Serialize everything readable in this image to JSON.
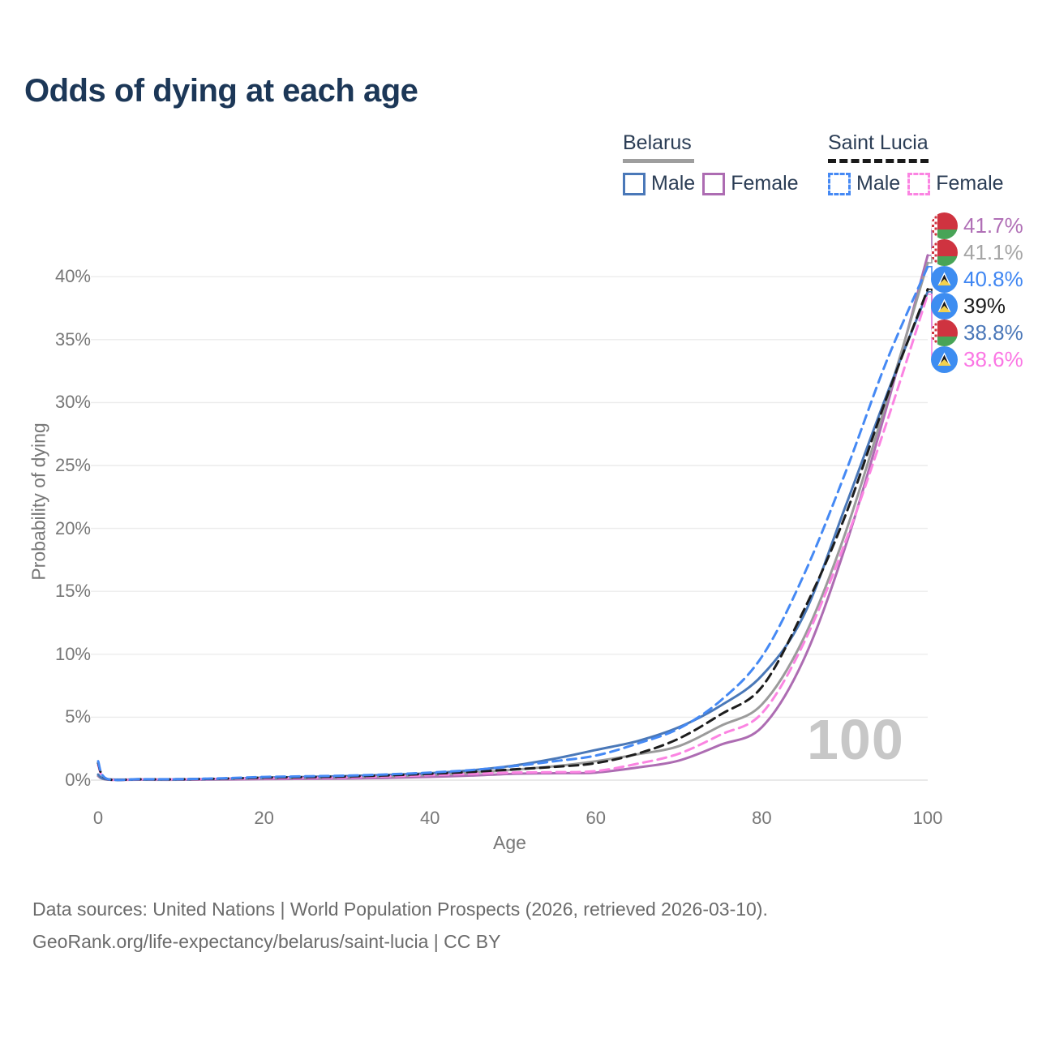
{
  "title": "Odds of dying at each age",
  "legend": {
    "groups": [
      {
        "label": "Belarus",
        "underline_style": "solid",
        "underline_color": "#9e9e9e",
        "items": [
          {
            "label": "Male",
            "color": "#4a78b8",
            "dashed": false
          },
          {
            "label": "Female",
            "color": "#ad6cb2",
            "dashed": false
          }
        ]
      },
      {
        "label": "Saint Lucia",
        "underline_style": "dashed",
        "underline_color": "#1a1a1a",
        "items": [
          {
            "label": "Male",
            "color": "#4589f4",
            "dashed": true
          },
          {
            "label": "Female",
            "color": "#fb84e2",
            "dashed": true
          }
        ]
      }
    ]
  },
  "chart_data": {
    "type": "line",
    "title": "Odds of dying at each age",
    "xlabel": "Age",
    "ylabel": "Probability of dying",
    "xlim": [
      0,
      100
    ],
    "ylim": [
      0,
      43
    ],
    "grid": true,
    "x_ticks": [
      0,
      20,
      40,
      60,
      80,
      100
    ],
    "y_ticks": [
      0,
      5,
      10,
      15,
      20,
      25,
      30,
      35,
      40
    ],
    "y_tick_labels": [
      "0%",
      "5%",
      "10%",
      "15%",
      "20%",
      "25%",
      "30%",
      "35%",
      "40%"
    ],
    "x": [
      0,
      1,
      5,
      10,
      15,
      20,
      25,
      30,
      35,
      40,
      45,
      50,
      55,
      60,
      65,
      70,
      75,
      80,
      85,
      90,
      95,
      100
    ],
    "series": [
      {
        "name": "Belarus Male",
        "country": "Belarus",
        "sex": "Male",
        "color": "#4a78b8",
        "dashed": false,
        "end_label": "38.8%",
        "values": [
          0.45,
          0.07,
          0.05,
          0.05,
          0.1,
          0.2,
          0.25,
          0.32,
          0.42,
          0.55,
          0.78,
          1.15,
          1.7,
          2.4,
          3.1,
          4.2,
          5.9,
          8.3,
          13.0,
          21.6,
          30.5,
          38.8
        ]
      },
      {
        "name": "Belarus Female",
        "country": "Belarus",
        "sex": "Female",
        "color": "#ad6cb2",
        "dashed": false,
        "end_label": "41.7%",
        "values": [
          0.32,
          0.05,
          0.03,
          0.03,
          0.05,
          0.08,
          0.1,
          0.13,
          0.18,
          0.26,
          0.36,
          0.5,
          0.55,
          0.6,
          1.0,
          1.55,
          2.8,
          4.2,
          9.5,
          18.4,
          29.5,
          41.7
        ]
      },
      {
        "name": "Belarus Total",
        "country": "Belarus",
        "sex": "Total",
        "color": "#9b9b9b",
        "dashed": false,
        "end_label": "41.1%",
        "values": [
          0.38,
          0.06,
          0.04,
          0.04,
          0.08,
          0.14,
          0.18,
          0.23,
          0.3,
          0.42,
          0.58,
          0.82,
          1.1,
          1.5,
          2.05,
          2.7,
          4.3,
          6.0,
          11.2,
          19.5,
          30.0,
          41.1
        ]
      },
      {
        "name": "Saint Lucia Male",
        "country": "Saint Lucia",
        "sex": "Male",
        "color": "#4589f4",
        "dashed": true,
        "end_label": "40.8%",
        "values": [
          1.5,
          0.12,
          0.08,
          0.08,
          0.15,
          0.25,
          0.3,
          0.36,
          0.46,
          0.6,
          0.8,
          1.1,
          1.5,
          1.95,
          2.9,
          4.1,
          6.3,
          9.8,
          16.2,
          24.3,
          33.2,
          40.8
        ]
      },
      {
        "name": "Saint Lucia Female",
        "country": "Saint Lucia",
        "sex": "Female",
        "color": "#fb84e2",
        "dashed": true,
        "end_label": "38.6%",
        "values": [
          1.2,
          0.1,
          0.06,
          0.06,
          0.1,
          0.15,
          0.18,
          0.22,
          0.3,
          0.4,
          0.5,
          0.6,
          0.63,
          0.72,
          1.3,
          2.1,
          3.6,
          5.3,
          10.8,
          18.8,
          28.3,
          38.6
        ]
      },
      {
        "name": "Saint Lucia Total",
        "country": "Saint Lucia",
        "sex": "Total",
        "color": "#1d1d1d",
        "dashed": true,
        "end_label": "39%",
        "values": [
          1.35,
          0.11,
          0.07,
          0.07,
          0.12,
          0.2,
          0.24,
          0.29,
          0.38,
          0.5,
          0.65,
          0.85,
          1.05,
          1.35,
          2.1,
          3.3,
          5.2,
          7.4,
          13.4,
          20.9,
          30.3,
          39.0
        ]
      }
    ]
  },
  "end_labels": [
    {
      "value": "41.7%",
      "color": "#b06fb6",
      "flag": "belarus",
      "series": "Belarus Female"
    },
    {
      "value": "41.1%",
      "color": "#a5a5a5",
      "flag": "belarus",
      "series": "Belarus Total"
    },
    {
      "value": "40.8%",
      "color": "#3f86f2",
      "flag": "saint-lucia",
      "series": "Saint Lucia Male"
    },
    {
      "value": "39%",
      "color": "#1d1d1d",
      "flag": "saint-lucia",
      "series": "Saint Lucia Total"
    },
    {
      "value": "38.8%",
      "color": "#4a77b8",
      "flag": "belarus",
      "series": "Belarus Male"
    },
    {
      "value": "38.6%",
      "color": "#fb76e4",
      "flag": "saint-lucia",
      "series": "Saint Lucia Female"
    }
  ],
  "watermark": "100",
  "footer": {
    "line1": "Data sources: United Nations | World Population Prospects (2026, retrieved 2026-03-10).",
    "line2": "GeoRank.org/life-expectancy/belarus/saint-lucia | CC BY"
  }
}
